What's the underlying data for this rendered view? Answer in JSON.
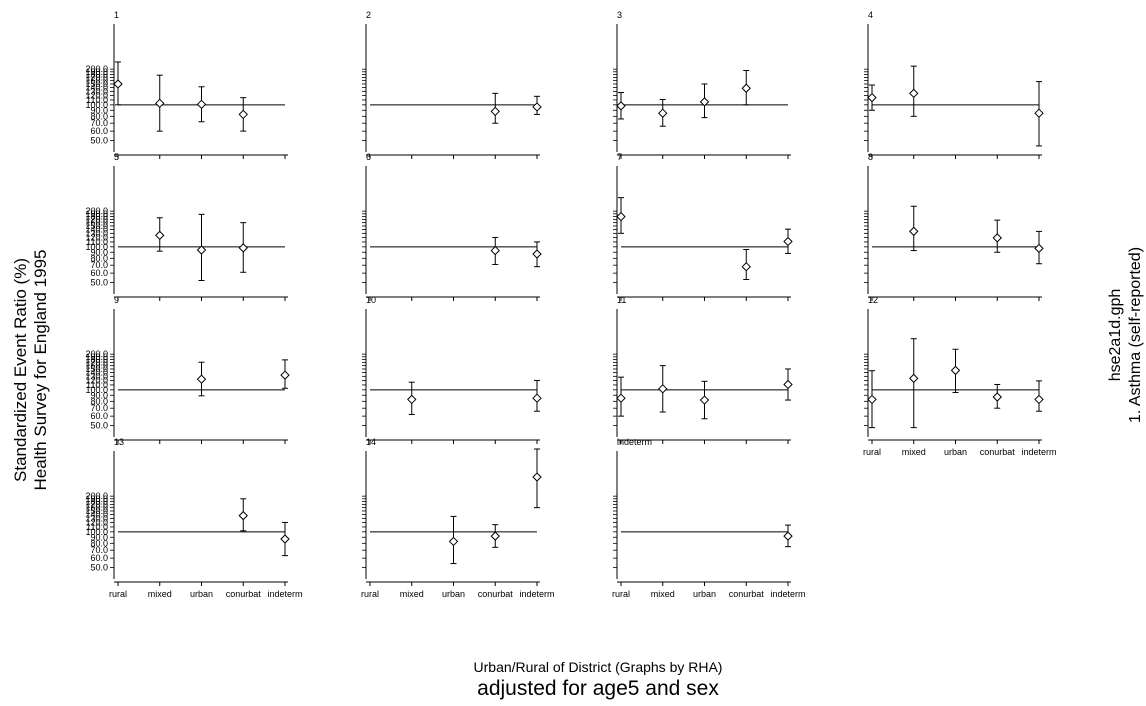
{
  "page": {
    "ylabel_line1": "Standardized Event Ratio (%)",
    "ylabel_line2": "Health Survey for England 1995",
    "xlabel": "Urban/Rural of District (Graphs by RHA)",
    "subtitle": "adjusted for age5 and sex",
    "right_line1": "hse2a1d.gph",
    "right_line2": "1.  Asthma (self-reported)"
  },
  "chart_data": {
    "type": "scatter",
    "categories": [
      "rural",
      "mixed",
      "urban",
      "conurbation",
      "indeterm"
    ],
    "tick_labels": [
      "rural",
      "mixed",
      "urban",
      "conurbat",
      "indeterm"
    ],
    "y_scale": "log",
    "ylim": [
      40,
      500
    ],
    "reference_line": 100,
    "y_tick_labels": [
      "50.0",
      "60.0",
      "70.0",
      "80.0",
      "90.0",
      "100.0",
      "110.0",
      "120.0",
      "130.0",
      "140.0",
      "150.0",
      "160.0",
      "170.0",
      "180.0",
      "190.0",
      "200.0"
    ],
    "marker": "diamond",
    "panels": [
      {
        "label": "1",
        "points": [
          {
            "x": "rural",
            "y": 150,
            "low": 100,
            "high": 230
          },
          {
            "x": "mixed",
            "y": 103,
            "low": 60,
            "high": 178
          },
          {
            "x": "urban",
            "y": 101,
            "low": 72,
            "high": 142
          },
          {
            "x": "conurbation",
            "y": 83,
            "low": 60,
            "high": 115
          }
        ]
      },
      {
        "label": "2",
        "points": [
          {
            "x": "conurbation",
            "y": 88,
            "low": 70,
            "high": 125
          },
          {
            "x": "indeterm",
            "y": 96,
            "low": 83,
            "high": 118
          }
        ]
      },
      {
        "label": "3",
        "points": [
          {
            "x": "rural",
            "y": 98,
            "low": 76,
            "high": 127
          },
          {
            "x": "mixed",
            "y": 85,
            "low": 66,
            "high": 111
          },
          {
            "x": "urban",
            "y": 106,
            "low": 78,
            "high": 150
          },
          {
            "x": "conurbation",
            "y": 138,
            "low": 100,
            "high": 195
          }
        ]
      },
      {
        "label": "4",
        "points": [
          {
            "x": "rural",
            "y": 115,
            "low": 90,
            "high": 147
          },
          {
            "x": "mixed",
            "y": 125,
            "low": 80,
            "high": 212
          },
          {
            "x": "indeterm",
            "y": 85,
            "low": 45,
            "high": 157
          }
        ]
      },
      {
        "label": "5",
        "points": [
          {
            "x": "mixed",
            "y": 125,
            "low": 92,
            "high": 176
          },
          {
            "x": "urban",
            "y": 94,
            "low": 52,
            "high": 188
          },
          {
            "x": "conurbation",
            "y": 98,
            "low": 61,
            "high": 160
          }
        ]
      },
      {
        "label": "6",
        "points": [
          {
            "x": "conurbation",
            "y": 93,
            "low": 71,
            "high": 120
          },
          {
            "x": "indeterm",
            "y": 87,
            "low": 68,
            "high": 110
          }
        ]
      },
      {
        "label": "7",
        "points": [
          {
            "x": "rural",
            "y": 180,
            "low": 130,
            "high": 260
          },
          {
            "x": "conurbation",
            "y": 68,
            "low": 53,
            "high": 95
          },
          {
            "x": "indeterm",
            "y": 111,
            "low": 88,
            "high": 141
          }
        ]
      },
      {
        "label": "8",
        "points": [
          {
            "x": "mixed",
            "y": 135,
            "low": 93,
            "high": 220
          },
          {
            "x": "conurbation",
            "y": 119,
            "low": 90,
            "high": 168
          },
          {
            "x": "indeterm",
            "y": 97,
            "low": 72,
            "high": 135
          }
        ]
      },
      {
        "label": "9",
        "points": [
          {
            "x": "urban",
            "y": 123,
            "low": 89,
            "high": 171
          },
          {
            "x": "indeterm",
            "y": 133,
            "low": 103,
            "high": 179
          }
        ]
      },
      {
        "label": "10",
        "points": [
          {
            "x": "mixed",
            "y": 83,
            "low": 62,
            "high": 116
          },
          {
            "x": "indeterm",
            "y": 85,
            "low": 66,
            "high": 120
          }
        ]
      },
      {
        "label": "11",
        "points": [
          {
            "x": "rural",
            "y": 85,
            "low": 60,
            "high": 128
          },
          {
            "x": "mixed",
            "y": 102,
            "low": 65,
            "high": 160
          },
          {
            "x": "urban",
            "y": 82,
            "low": 57,
            "high": 118
          },
          {
            "x": "indeterm",
            "y": 111,
            "low": 82,
            "high": 150
          }
        ]
      },
      {
        "label": "12",
        "points": [
          {
            "x": "rural",
            "y": 83,
            "low": 48,
            "high": 145
          },
          {
            "x": "mixed",
            "y": 125,
            "low": 48,
            "high": 270
          },
          {
            "x": "urban",
            "y": 146,
            "low": 95,
            "high": 220
          },
          {
            "x": "conurbation",
            "y": 87,
            "low": 70,
            "high": 111
          },
          {
            "x": "indeterm",
            "y": 83,
            "low": 66,
            "high": 119
          }
        ]
      },
      {
        "label": "13",
        "points": [
          {
            "x": "conurbation",
            "y": 137,
            "low": 102,
            "high": 190
          },
          {
            "x": "indeterm",
            "y": 87,
            "low": 63,
            "high": 120
          }
        ]
      },
      {
        "label": "14",
        "points": [
          {
            "x": "urban",
            "y": 83,
            "low": 54,
            "high": 135
          },
          {
            "x": "conurbation",
            "y": 92,
            "low": 74,
            "high": 115
          },
          {
            "x": "indeterm",
            "y": 290,
            "low": 160,
            "high": 520
          }
        ]
      },
      {
        "label": "indeterm",
        "points": [
          {
            "x": "indeterm",
            "y": 92,
            "low": 75,
            "high": 114
          }
        ]
      }
    ]
  }
}
